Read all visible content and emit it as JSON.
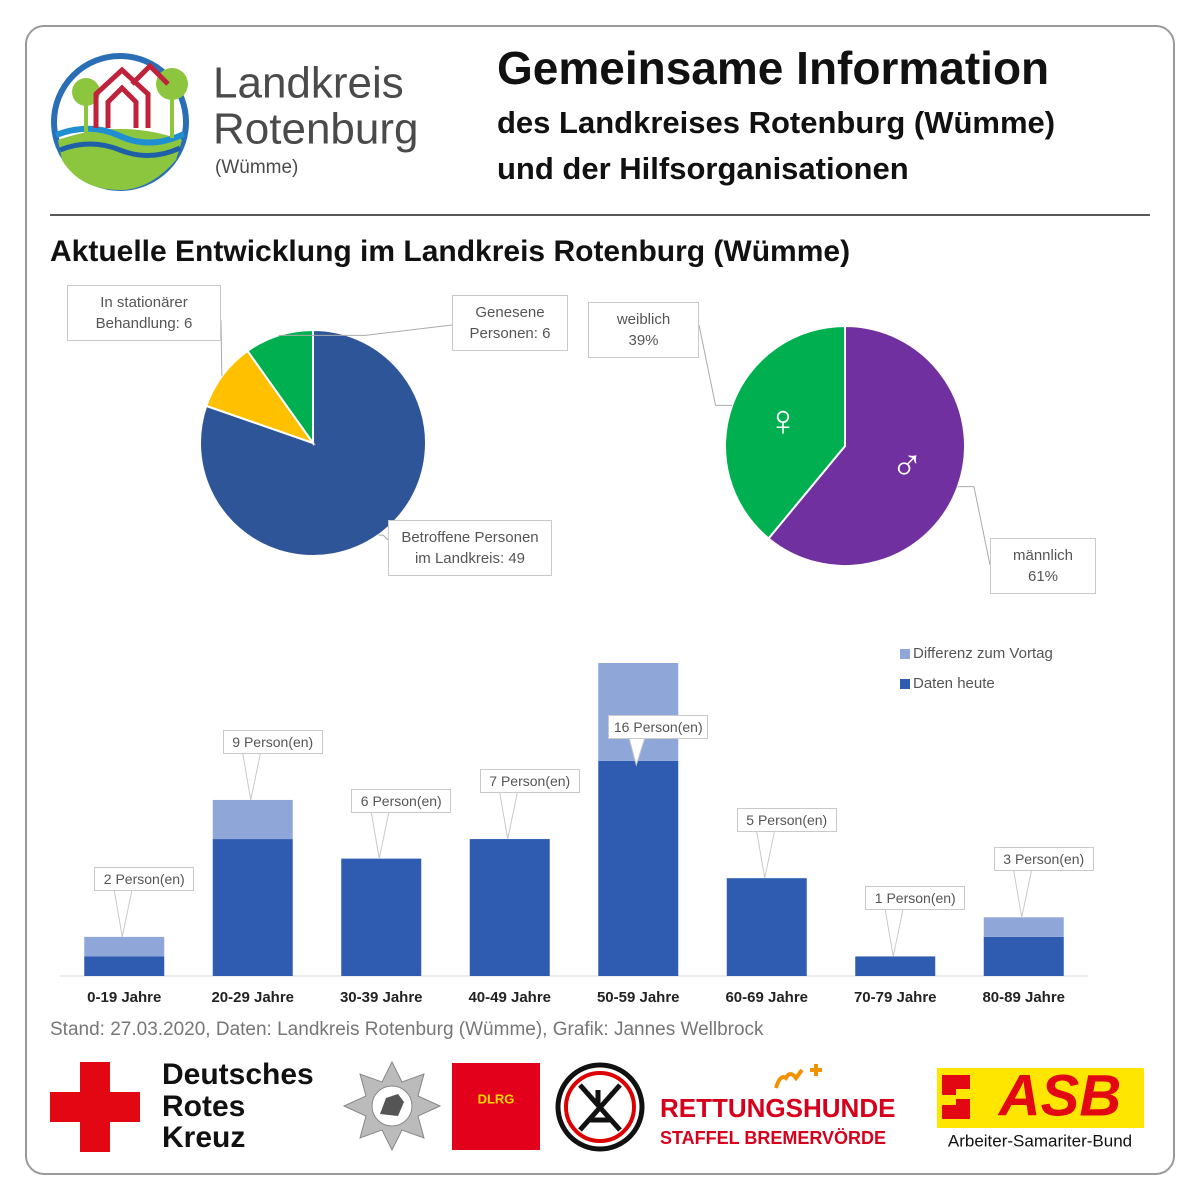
{
  "header": {
    "logo": {
      "line1": "Landkreis",
      "line2": "Rotenburg",
      "line3": "(Wümme)"
    },
    "title": "Gemeinsame Information",
    "subtitle_lines": [
      "des Landkreises Rotenburg (Wümme)",
      "und der Hilfsorganisationen"
    ]
  },
  "section_title": "Aktuelle Entwicklung im Landkreis Rotenburg (Wümme)",
  "chart_data": [
    {
      "type": "pie",
      "categories": [
        "Betroffene Personen im Landkreis: 49",
        "In stationärer Behandlung: 6",
        "Genesene Personen: 6"
      ],
      "values": [
        49,
        6,
        6
      ],
      "colors": [
        "#2e5597",
        "#ffc000",
        "#00b050"
      ]
    },
    {
      "type": "pie",
      "categories": [
        "männlich",
        "weiblich"
      ],
      "values": [
        61,
        39
      ],
      "value_labels": [
        "61%",
        "39%"
      ],
      "symbols": [
        "♂",
        "♀"
      ],
      "colors": [
        "#7030a0",
        "#00b050"
      ]
    },
    {
      "type": "bar",
      "stacked": true,
      "categories": [
        "0-19 Jahre",
        "20-29 Jahre",
        "30-39 Jahre",
        "40-49 Jahre",
        "50-59 Jahre",
        "60-69 Jahre",
        "70-79 Jahre",
        "80-89 Jahre"
      ],
      "series": [
        {
          "name": "Daten heute",
          "color": "#2f5bb0",
          "values": [
            1,
            7,
            6,
            7,
            11,
            5,
            1,
            2
          ]
        },
        {
          "name": "Differenz zum Vortag",
          "color": "#8fa6d8",
          "values": [
            1,
            2,
            0,
            0,
            5,
            0,
            0,
            1
          ]
        }
      ],
      "totals": {
        "values": [
          2,
          9,
          6,
          7,
          16,
          5,
          1,
          3
        ],
        "value_labels": [
          "2 Person(en)",
          "9 Person(en)",
          "6 Person(en)",
          "7 Person(en)",
          "16 Person(en)",
          "5 Person(en)",
          "1 Person(en)",
          "3 Person(en)"
        ]
      },
      "ylim": [
        0,
        16
      ]
    }
  ],
  "footer": {
    "source": "Stand: 27.03.2020, Daten: Landkreis Rotenburg (Wümme), Grafik: Jannes Wellbrock",
    "logos": {
      "drk": [
        "Deutsches",
        "Rotes",
        "Kreuz"
      ],
      "dlrg": "DLRG",
      "rettungshunde": [
        "RETTUNGSHUNDE",
        "STAFFEL BREMERVÖRDE"
      ],
      "asb": [
        "ASB",
        "Arbeiter-Samariter-Bund"
      ]
    }
  }
}
